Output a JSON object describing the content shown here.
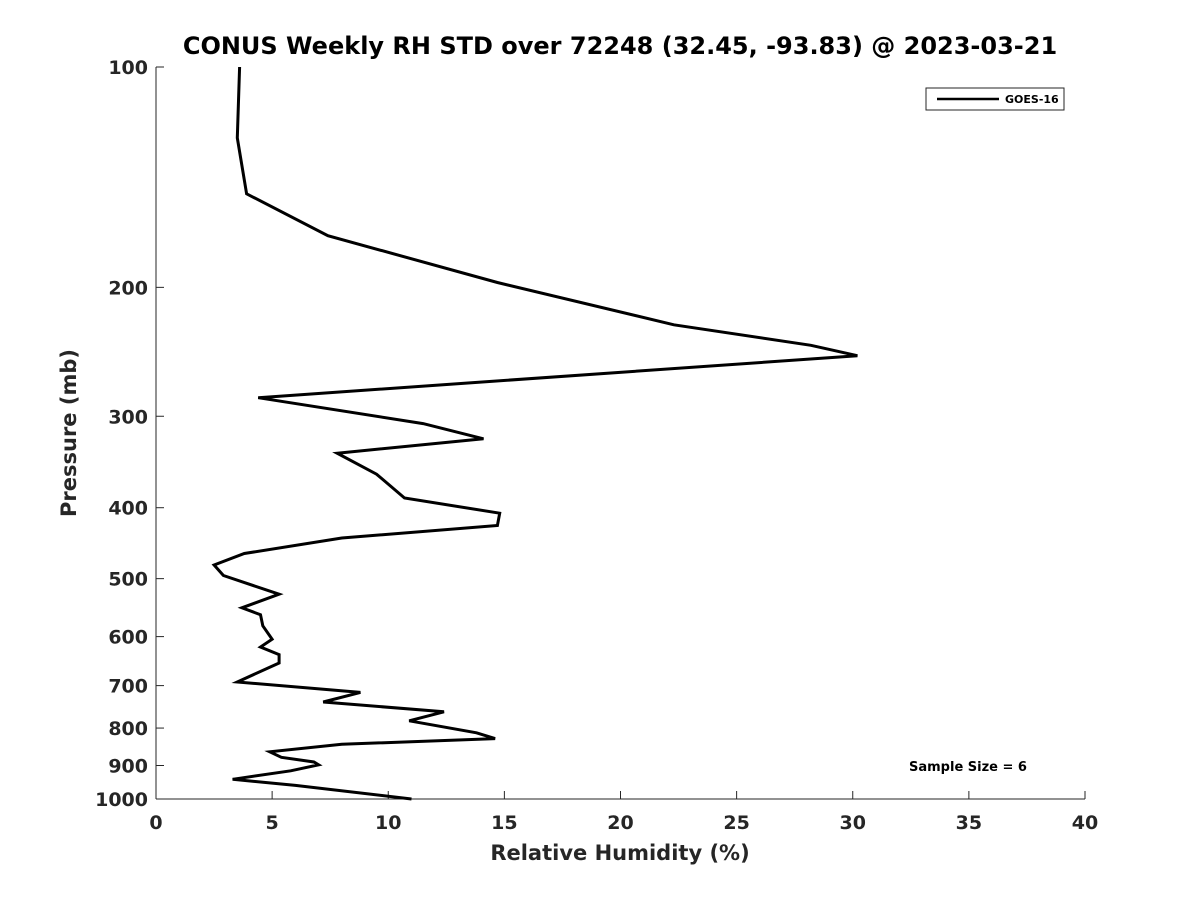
{
  "chart_data": {
    "type": "line",
    "title": "CONUS Weekly RH STD over 72248 (32.45, -93.83) @ 2023-03-21",
    "xlabel": "Relative Humidity (%)",
    "ylabel": "Pressure (mb)",
    "xlim": [
      0,
      40
    ],
    "ylim": [
      100,
      1000
    ],
    "y_scale": "log",
    "y_reversed": true,
    "x_ticks": [
      0,
      5,
      10,
      15,
      20,
      25,
      30,
      35,
      40
    ],
    "y_ticks": [
      100,
      200,
      300,
      400,
      500,
      600,
      700,
      800,
      900,
      1000
    ],
    "grid": false,
    "legend_position": "top-right",
    "annotation": "Sample Size = 6",
    "series": [
      {
        "name": "GOES-16",
        "color": "#000000",
        "x": [
          3.6,
          3.5,
          3.9,
          7.4,
          14.7,
          22.3,
          28.2,
          30.2,
          4.4,
          11.5,
          14.1,
          7.8,
          9.5,
          10.7,
          14.8,
          14.7,
          8.0,
          3.8,
          2.5,
          2.9,
          5.3,
          3.7,
          4.5,
          4.6,
          5.0,
          4.5,
          5.3,
          5.3,
          3.5,
          8.8,
          7.2,
          12.4,
          10.9,
          13.8,
          14.6,
          8.0,
          4.9,
          5.4,
          6.8,
          7.0,
          5.8,
          3.3,
          6.0,
          11.0
        ],
        "y": [
          100,
          125,
          149,
          170,
          197,
          225,
          240,
          248,
          283,
          307,
          322,
          337,
          360,
          388,
          407,
          423,
          440,
          462,
          479,
          495,
          525,
          548,
          560,
          580,
          605,
          620,
          635,
          652,
          692,
          715,
          737,
          760,
          782,
          812,
          827,
          842,
          862,
          877,
          890,
          898,
          915,
          940,
          958,
          1000
        ]
      }
    ]
  }
}
